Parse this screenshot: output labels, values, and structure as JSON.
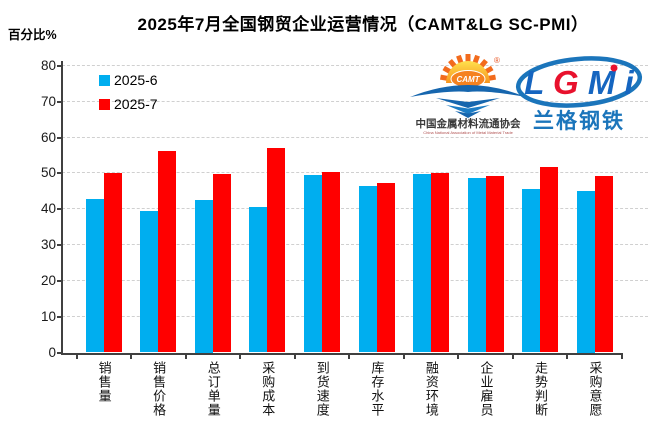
{
  "title": "2025年7月全国钢贸企业运营情况（CAMT&LG SC-PMI）",
  "y_axis_unit": "百分比%",
  "chart_data": {
    "type": "bar",
    "title": "2025年7月全国钢贸企业运营情况（CAMT&LG SC-PMI）",
    "ylabel": "百分比%",
    "ylim": [
      0,
      80
    ],
    "ytick_step": 10,
    "yticks": [
      0,
      10,
      20,
      30,
      40,
      50,
      60,
      70,
      80
    ],
    "grid": "horizontal dashed",
    "legend_position": "top-left inside",
    "categories": [
      "销售量",
      "销售价格",
      "总订单量",
      "采购成本",
      "到货速度",
      "库存水平",
      "融资环境",
      "企业雇员",
      "走势判断",
      "采购意愿"
    ],
    "series": [
      {
        "name": "2025-6",
        "color": "#00AEEF",
        "values": [
          43.0,
          39.6,
          42.5,
          40.5,
          49.7,
          46.6,
          49.9,
          48.6,
          45.6,
          45.0
        ]
      },
      {
        "name": "2025-7",
        "color": "#FF0000",
        "values": [
          50.2,
          56.3,
          49.8,
          57.2,
          50.5,
          47.2,
          50.1,
          49.3,
          51.8,
          49.2
        ]
      }
    ]
  },
  "legend": [
    {
      "label": "2025-6"
    },
    {
      "label": "2025-7"
    }
  ],
  "logos": {
    "camt": {
      "acronym": "CAMT",
      "registered_mark": "®",
      "name_cn": "中国金属材料流通协会",
      "name_en": "China National Association of Metal Material Trade"
    },
    "lgmi": {
      "letters": [
        "L",
        "G",
        "M",
        "i"
      ],
      "name_cn": "兰格钢铁"
    }
  },
  "colors": {
    "series_june": "#00AEEF",
    "series_july": "#FF0000",
    "gridline": "#d0d0d0",
    "axis": "#404040",
    "camt_orange": "#F58220",
    "logo_blue": "#1666AE"
  }
}
